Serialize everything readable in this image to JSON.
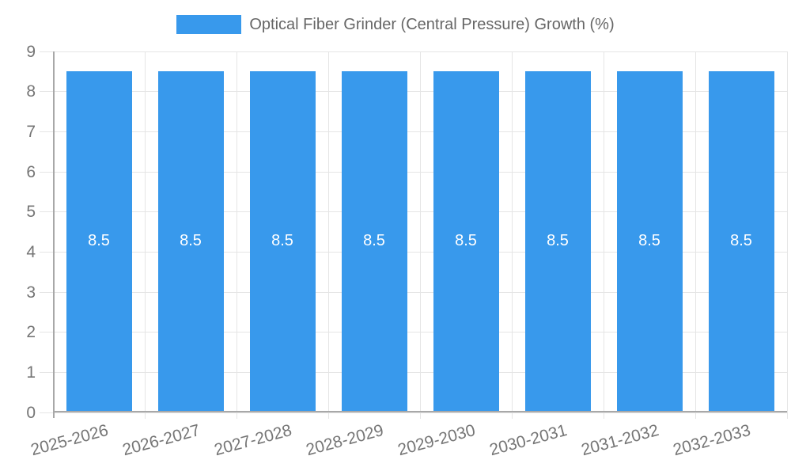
{
  "legend": {
    "label": "Optical Fiber Grinder (Central Pressure) Growth (%)"
  },
  "chart_data": {
    "type": "bar",
    "title": "Optical Fiber Grinder (Central Pressure) Growth (%)",
    "categories": [
      "2025-2026",
      "2026-2027",
      "2027-2028",
      "2028-2029",
      "2029-2030",
      "2030-2031",
      "2031-2032",
      "2032-2033"
    ],
    "values": [
      8.5,
      8.5,
      8.5,
      8.5,
      8.5,
      8.5,
      8.5,
      8.5
    ],
    "bar_value_labels": [
      "8.5",
      "8.5",
      "8.5",
      "8.5",
      "8.5",
      "8.5",
      "8.5",
      "8.5"
    ],
    "xlabel": "",
    "ylabel": "",
    "ylim": [
      0,
      9
    ],
    "y_ticks": [
      "0",
      "1",
      "2",
      "3",
      "4",
      "5",
      "6",
      "7",
      "8",
      "9"
    ],
    "grid": true,
    "legend_position": "top",
    "colors": {
      "bar": "#3899ec",
      "gridline": "#e5e5e5",
      "axis": "#a8a8a8",
      "tick_label": "#757575",
      "legend_text": "#666666",
      "value_label": "#ffffff"
    }
  }
}
